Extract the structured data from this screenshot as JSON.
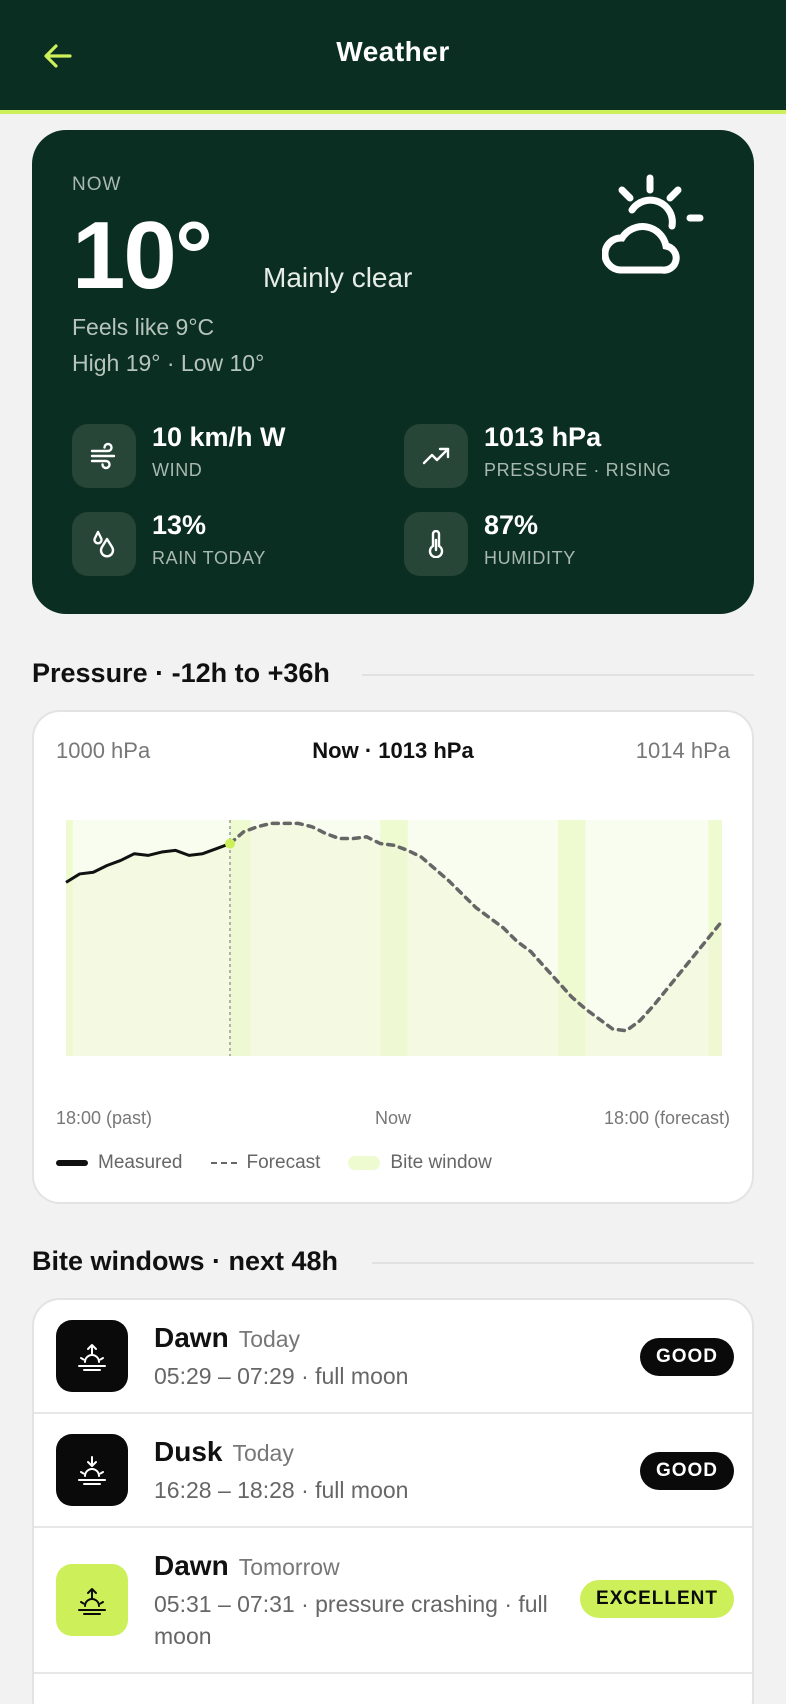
{
  "header": {
    "title": "Weather"
  },
  "now": {
    "label": "NOW",
    "temp": "10°",
    "condition": "Mainly clear",
    "feels_like": "Feels like 9°C",
    "high_low": "High 19° · Low 10°",
    "icon": "partly-cloudy-day-icon",
    "stats": [
      {
        "value": "10 km/h W",
        "label": "WIND",
        "icon": "wind-icon"
      },
      {
        "value": "1013 hPa",
        "label": "PRESSURE · RISING",
        "icon": "trending-up-icon"
      },
      {
        "value": "13%",
        "label": "RAIN TODAY",
        "icon": "raindrops-icon"
      },
      {
        "value": "87%",
        "label": "HUMIDITY",
        "icon": "thermometer-icon"
      }
    ]
  },
  "pressure": {
    "section_title": "Pressure · -12h to +36h",
    "range_low": "1000 hPa",
    "now_label": "Now · 1013 hPa",
    "range_high": "1014 hPa",
    "x_left": "18:00 (past)",
    "x_mid": "Now",
    "x_right": "18:00 (forecast)",
    "legend": {
      "measured": "Measured",
      "forecast": "Forecast",
      "bite": "Bite window"
    },
    "colors": {
      "measured": "#111111",
      "forecast": "#666666",
      "bite": "#eefad0",
      "now_dot": "#cdf05a"
    }
  },
  "chart_data": {
    "type": "line",
    "x_unit": "hours relative to now",
    "xlim": [
      -12,
      36
    ],
    "ylim": [
      1000,
      1014
    ],
    "series": [
      {
        "name": "Measured",
        "x": [
          -12,
          -11,
          -10,
          -9,
          -8,
          -7,
          -6,
          -5,
          -4,
          -3,
          -2,
          -1,
          0
        ],
        "y": [
          1010.3,
          1010.8,
          1010.9,
          1011.3,
          1011.6,
          1012.0,
          1011.9,
          1012.1,
          1012.2,
          1011.9,
          1012.0,
          1012.3,
          1012.6
        ]
      },
      {
        "name": "Forecast",
        "x": [
          0,
          1,
          2,
          3,
          4,
          5,
          6,
          7,
          8,
          9,
          10,
          11,
          12,
          13,
          14,
          15,
          16,
          17,
          18,
          19,
          20,
          21,
          22,
          23,
          24,
          25,
          26,
          27,
          28,
          29,
          30,
          31,
          32,
          33,
          34,
          35,
          36
        ],
        "y": [
          1012.6,
          1013.3,
          1013.6,
          1013.8,
          1013.8,
          1013.8,
          1013.6,
          1013.2,
          1012.9,
          1012.9,
          1013.0,
          1012.6,
          1012.5,
          1012.2,
          1011.8,
          1011.1,
          1010.4,
          1009.6,
          1008.8,
          1008.2,
          1007.6,
          1006.8,
          1006.2,
          1005.3,
          1004.4,
          1003.5,
          1002.8,
          1002.2,
          1001.6,
          1001.5,
          1002.1,
          1003.0,
          1004.0,
          1005.0,
          1006.0,
          1007.0,
          1008.0
        ]
      }
    ],
    "bite_windows": [
      [
        -12,
        -11.5
      ],
      [
        0,
        1.5
      ],
      [
        11,
        13
      ],
      [
        24,
        26
      ],
      [
        35,
        36.5
      ]
    ]
  },
  "bite": {
    "section_title": "Bite windows · next 48h",
    "rows": [
      {
        "name": "Dawn",
        "day": "Today",
        "time": "05:29 – 07:29 · full moon",
        "badge": "GOOD",
        "icon": "sunrise-icon"
      },
      {
        "name": "Dusk",
        "day": "Today",
        "time": "16:28 – 18:28 · full moon",
        "badge": "GOOD",
        "icon": "sunset-icon"
      },
      {
        "name": "Dawn",
        "day": "Tomorrow",
        "time": "05:31 – 07:31 · pressure crashing · full moon",
        "badge": "EXCELLENT",
        "icon": "sunrise-icon"
      }
    ]
  }
}
